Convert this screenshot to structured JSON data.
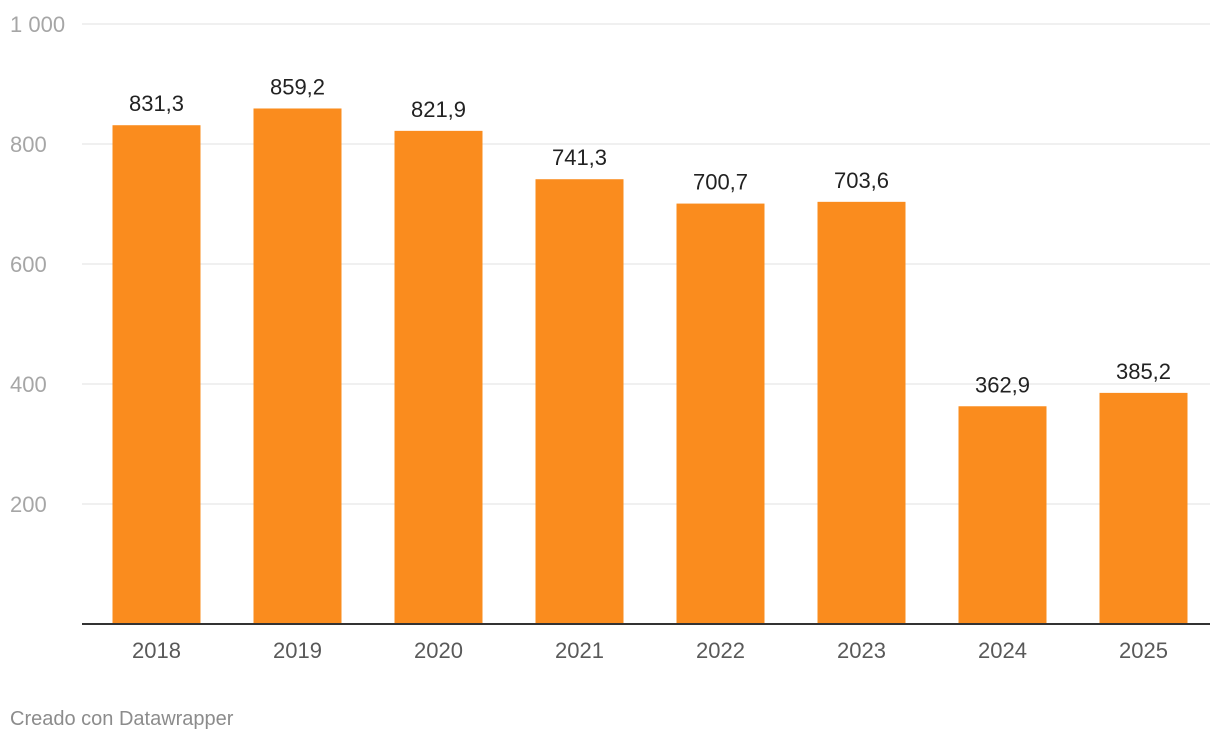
{
  "chart_data": {
    "type": "bar",
    "categories": [
      "2018",
      "2019",
      "2020",
      "2021",
      "2022",
      "2023",
      "2024",
      "2025"
    ],
    "values": [
      831.3,
      859.2,
      821.9,
      741.3,
      700.7,
      703.6,
      362.9,
      385.2
    ],
    "value_labels": [
      "831,3",
      "859,2",
      "821,9",
      "741,3",
      "700,7",
      "703,6",
      "362,9",
      "385,2"
    ],
    "y_ticks": [
      200,
      400,
      600,
      800,
      1000
    ],
    "y_tick_labels": [
      "200",
      "400",
      "600",
      "800",
      "1 000"
    ],
    "ylim": [
      0,
      1000
    ],
    "title": "",
    "xlabel": "",
    "ylabel": "",
    "grid": true,
    "colors": {
      "bar": "#fa8c1e",
      "grid": "#e0e0e0",
      "axis": "#333333",
      "tick_label": "#a6a6a6",
      "x_label": "#595959",
      "value_label": "#222222"
    }
  },
  "footer": {
    "credit": "Creado con Datawrapper"
  }
}
